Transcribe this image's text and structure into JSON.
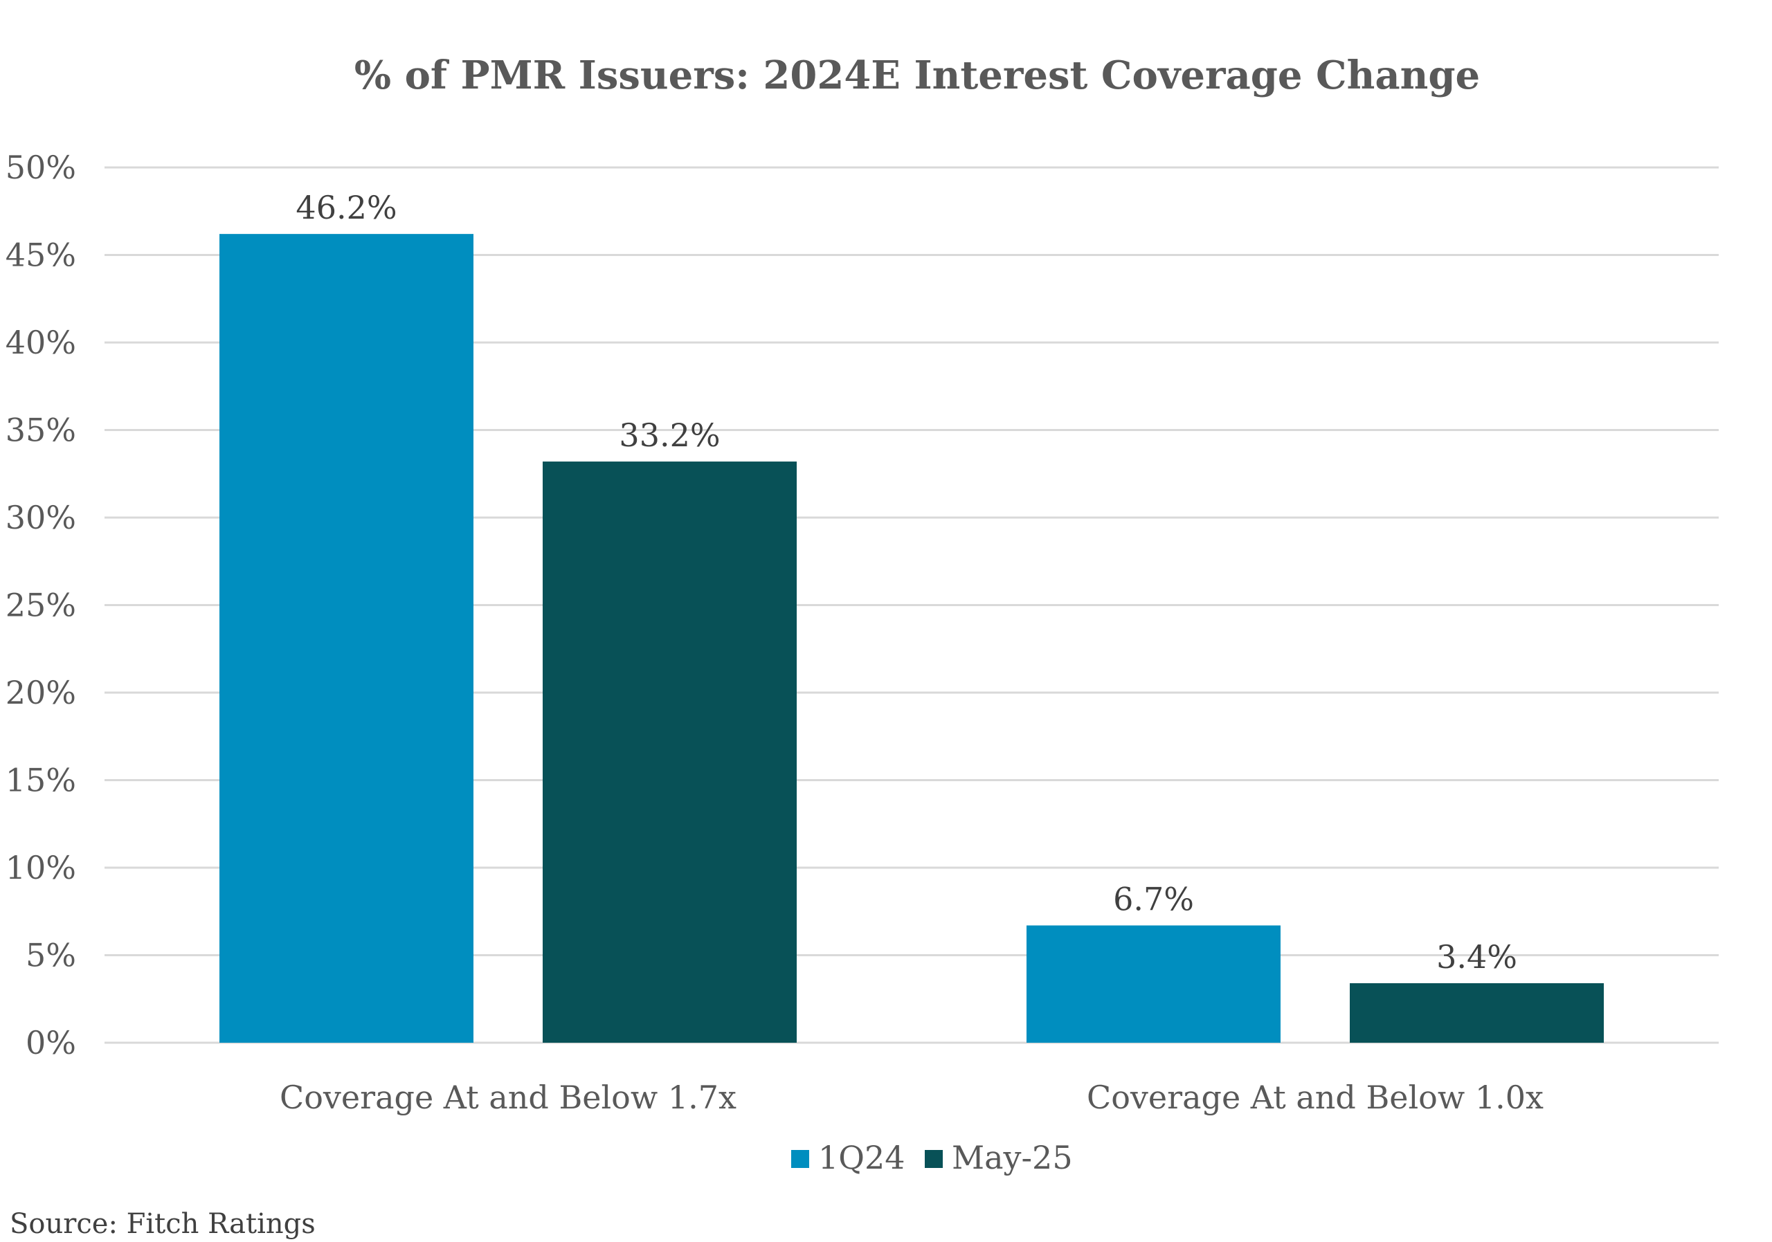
{
  "chart_data": {
    "type": "bar",
    "title": "% of PMR Issuers: 2024E Interest Coverage Change",
    "xlabel": "",
    "ylabel": "",
    "categories": [
      "Coverage At and Below 1.7x",
      "Coverage At and Below 1.0x"
    ],
    "series": [
      {
        "name": "1Q24",
        "values": [
          46.2,
          6.7
        ],
        "labels": [
          "46.2%",
          "6.7%"
        ],
        "color": "#008EBF"
      },
      {
        "name": "May-25",
        "values": [
          33.2,
          3.4
        ],
        "labels": [
          "33.2%",
          "3.4%"
        ],
        "color": "#085157"
      }
    ],
    "ylim": [
      0,
      50
    ],
    "yticks": [
      0,
      5,
      10,
      15,
      20,
      25,
      30,
      35,
      40,
      45,
      50
    ],
    "ytick_labels": [
      "0%",
      "5%",
      "10%",
      "15%",
      "20%",
      "25%",
      "30%",
      "35%",
      "40%",
      "45%",
      "50%"
    ],
    "grid": true,
    "legend_position": "bottom-center",
    "source": "Source: Fitch Ratings"
  }
}
